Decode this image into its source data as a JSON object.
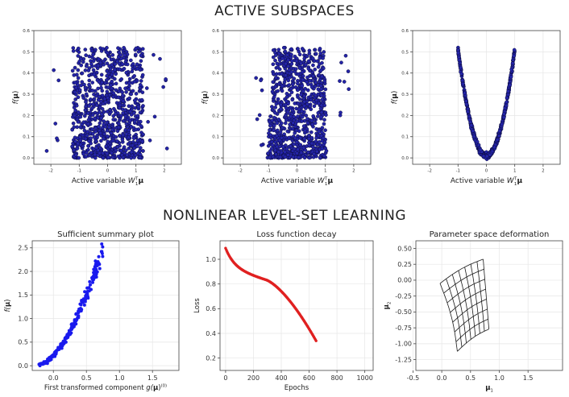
{
  "sections": {
    "active_subspaces": "ACTIVE SUBSPACES",
    "nonlinear": "NONLINEAR LEVEL-SET LEARNING"
  },
  "colors": {
    "as_points": "#2424a8",
    "as_edge": "#0a0a3a",
    "summary_points": "#1a1aee",
    "loss_points": "#e02020",
    "grid_lines": "#1a1a1a",
    "gridlines": "#e6e6e6"
  },
  "chart_data": [
    {
      "id": "as1",
      "type": "scatter",
      "xlabel_prefix": "Active variable ",
      "xlabel_sym": "W",
      "xlabel_sub": "1",
      "xlabel_sup": "T",
      "xlabel_vec": "μ",
      "ylabel_prefix": "f(",
      "ylabel_vec": "μ",
      "ylabel_suffix": ")",
      "xlim": [
        -2.6,
        2.6
      ],
      "ylim": [
        -0.03,
        0.6
      ],
      "xticks": [
        "-2",
        "-1",
        "0",
        "1",
        "2"
      ],
      "yticks": [
        "0.0",
        "0.1",
        "0.2",
        "0.3",
        "0.4",
        "0.5",
        "0.6"
      ],
      "shape": "uniform",
      "xrange": [
        -1.25,
        1.25
      ],
      "n": 900
    },
    {
      "id": "as2",
      "type": "scatter",
      "xlabel_prefix": "Active variable ",
      "xlabel_sym": "W",
      "xlabel_sub": "1",
      "xlabel_sup": "T",
      "xlabel_vec": "μ",
      "ylabel_prefix": "f(",
      "ylabel_vec": "μ",
      "ylabel_suffix": ")",
      "xlim": [
        -2.6,
        2.6
      ],
      "ylim": [
        -0.03,
        0.6
      ],
      "xticks": [
        "-2",
        "-1",
        "0",
        "1",
        "2"
      ],
      "yticks": [
        "0.0",
        "0.1",
        "0.2",
        "0.3",
        "0.4",
        "0.5",
        "0.6"
      ],
      "shape": "uniform",
      "xrange": [
        -1.05,
        1.05
      ],
      "n": 900
    },
    {
      "id": "as3",
      "type": "scatter",
      "xlabel_prefix": "Active variable ",
      "xlabel_sym": "W",
      "xlabel_sub": "1",
      "xlabel_sup": "T",
      "xlabel_vec": "μ",
      "ylabel_prefix": "f(",
      "ylabel_vec": "μ",
      "ylabel_suffix": ")",
      "xlim": [
        -2.6,
        2.6
      ],
      "ylim": [
        -0.03,
        0.6
      ],
      "xticks": [
        "-2",
        "-1",
        "0",
        "1",
        "2"
      ],
      "yticks": [
        "0.0",
        "0.1",
        "0.2",
        "0.3",
        "0.4",
        "0.5",
        "0.6"
      ],
      "shape": "parabola",
      "xrange": [
        -1.0,
        1.0
      ],
      "n": 600
    },
    {
      "id": "summary",
      "type": "scatter",
      "title": "Sufficient summary plot",
      "xlabel_prefix": "First transformed component ",
      "xlabel_sym": "g(",
      "xlabel_vec": "μ",
      "xlabel_suffix": ")",
      "xlabel_sup": "(0)",
      "ylabel_prefix": "f(",
      "ylabel_vec": "μ",
      "ylabel_suffix": ")",
      "xlim": [
        -0.32,
        1.9
      ],
      "ylim": [
        -0.1,
        2.65
      ],
      "xticks": [
        "0.0",
        "0.5",
        "1.0",
        "1.5"
      ],
      "xtick_values": [
        0.0,
        0.5,
        1.0,
        1.5
      ],
      "yticks": [
        "0.0",
        "0.5",
        "1.0",
        "1.5",
        "2.0",
        "2.5"
      ],
      "ytick_values": [
        0.0,
        0.5,
        1.0,
        1.5,
        2.0,
        2.5
      ],
      "shape": "exp_curve",
      "xrange": [
        -0.22,
        0.75
      ],
      "n": 220
    },
    {
      "id": "loss",
      "type": "scatter",
      "title": "Loss function decay",
      "xlabel": "Epochs",
      "ylabel": "Loss",
      "xlim": [
        -40,
        1060
      ],
      "ylim": [
        0.1,
        1.15
      ],
      "xticks": [
        "0",
        "200",
        "400",
        "600",
        "800",
        "1000"
      ],
      "xtick_values": [
        0,
        200,
        400,
        600,
        800,
        1000
      ],
      "yticks": [
        "0.2",
        "0.4",
        "0.6",
        "0.8",
        "1.0"
      ],
      "ytick_values": [
        0.2,
        0.4,
        0.6,
        0.8,
        1.0
      ],
      "epochs_max": 650,
      "start_value": 1.09,
      "end_value": 0.34,
      "n": 130
    },
    {
      "id": "deform",
      "type": "grid",
      "title": "Parameter space deformation",
      "xlabel_vec": "μ",
      "xlabel_sub": "1",
      "ylabel_vec": "μ",
      "ylabel_sub": "2",
      "xlim": [
        -0.45,
        2.1
      ],
      "ylim": [
        -1.42,
        0.62
      ],
      "xticks": [
        "-0.5",
        "0.0",
        "0.5",
        "1.0",
        "1.5"
      ],
      "xtick_values": [
        -0.5,
        0.0,
        0.5,
        1.0,
        1.5
      ],
      "yticks": [
        "0.50",
        "0.25",
        "0.00",
        "-0.25",
        "-0.50",
        "-0.75",
        "-1.00",
        "-1.25"
      ],
      "ytick_values": [
        0.5,
        0.25,
        0.0,
        -0.25,
        -0.5,
        -0.75,
        -1.0,
        -1.25
      ],
      "corners": {
        "tl": [
          -0.03,
          -0.05
        ],
        "tr": [
          0.72,
          0.33
        ],
        "bl": [
          0.27,
          -1.12
        ],
        "br": [
          0.82,
          -0.77
        ]
      },
      "lines": 8
    }
  ]
}
